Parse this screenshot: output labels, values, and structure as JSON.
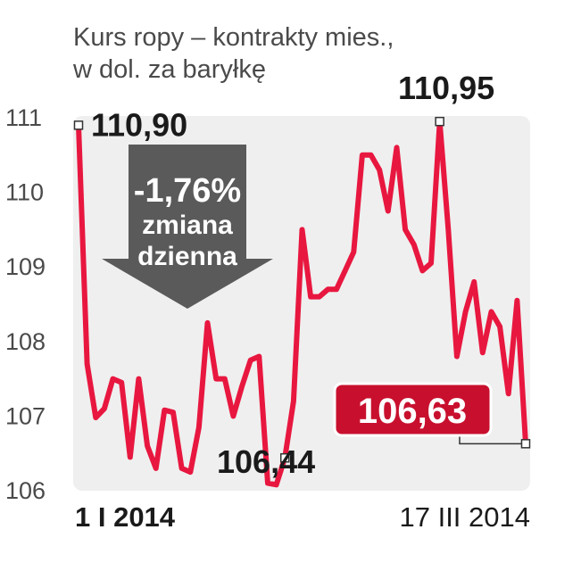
{
  "title_line1": "Kurs ropy – kontrakty mies.,",
  "title_line2": "w dol. za baryłkę",
  "colors": {
    "line": "#e8173f",
    "plot_bg": "#efefef",
    "badge": "#c8102e",
    "arrow": "#5a5a5a",
    "text": "#1a1a1a",
    "axis_text": "#4a4a4a"
  },
  "chart_data": {
    "type": "line",
    "title": "Kurs ropy – kontrakty mies., w dol. za baryłkę",
    "xlabel": "",
    "ylabel": "",
    "x_tick_labels": [
      "1 I 2014",
      "17 III 2014"
    ],
    "y_ticks": [
      106,
      107,
      108,
      109,
      110,
      111
    ],
    "y_tick_labels": [
      "106",
      "107",
      "108",
      "109",
      "110",
      "111"
    ],
    "ylim": [
      106,
      111
    ],
    "grid": false,
    "series": [
      {
        "values": [
          110.9,
          107.7,
          106.98,
          107.1,
          107.5,
          107.45,
          106.45,
          107.5,
          106.6,
          106.3,
          107.08,
          107.05,
          106.3,
          106.25,
          106.85,
          108.25,
          107.5,
          107.5,
          107.0,
          107.4,
          107.75,
          107.8,
          106.1,
          106.08,
          106.44,
          107.2,
          109.5,
          108.6,
          108.6,
          108.7,
          108.7,
          108.95,
          109.2,
          110.5,
          110.5,
          110.3,
          109.75,
          110.6,
          109.5,
          109.3,
          108.95,
          109.05,
          110.95,
          109.5,
          107.8,
          108.4,
          108.8,
          107.85,
          108.4,
          108.2,
          107.3,
          108.55,
          106.63
        ]
      }
    ],
    "annotations": [
      {
        "label": "110,90",
        "value": 110.9,
        "index": 0
      },
      {
        "label": "106,44",
        "value": 106.44,
        "index": 24
      },
      {
        "label": "110,95",
        "value": 110.95,
        "index": 42
      },
      {
        "label": "106,63",
        "value": 106.63,
        "index": 52
      }
    ],
    "callout": {
      "percent": "-1,76%",
      "line1": "zmiana",
      "line2": "dzienna"
    }
  }
}
